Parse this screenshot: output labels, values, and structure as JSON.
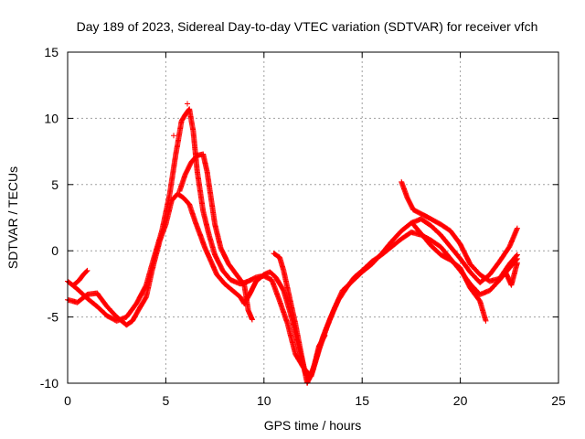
{
  "chart_data": {
    "type": "scatter",
    "title": "Day 189 of 2023, Sidereal Day-to-day VTEC variation (SDTVAR) for receiver vfch",
    "xlabel": "GPS time / hours",
    "ylabel": "SDTVAR / TECUs",
    "xlim": [
      0,
      25
    ],
    "ylim": [
      -10,
      15
    ],
    "xticks": [
      "0",
      "5",
      "10",
      "15",
      "20",
      "25"
    ],
    "yticks": [
      "-10",
      "-5",
      "0",
      "5",
      "10",
      "15"
    ],
    "grid": true,
    "marker": "+",
    "color": "#ff0000",
    "series": [
      {
        "name": "track-a",
        "points": [
          [
            0.0,
            -3.7
          ],
          [
            0.5,
            -3.9
          ],
          [
            1.0,
            -3.3
          ],
          [
            1.5,
            -3.2
          ],
          [
            2.0,
            -4.2
          ],
          [
            2.5,
            -5.0
          ],
          [
            3.0,
            -5.6
          ],
          [
            3.3,
            -5.3
          ],
          [
            3.6,
            -4.5
          ],
          [
            4.0,
            -3.5
          ],
          [
            4.3,
            -1.5
          ],
          [
            4.7,
            0.8
          ],
          [
            5.0,
            2.0
          ],
          [
            5.3,
            3.8
          ],
          [
            5.6,
            4.3
          ],
          [
            5.9,
            4.0
          ],
          [
            6.2,
            3.5
          ],
          [
            6.5,
            2.2
          ],
          [
            6.8,
            1.0
          ],
          [
            7.0,
            0.2
          ],
          [
            7.3,
            -0.8
          ],
          [
            7.6,
            -1.8
          ],
          [
            8.0,
            -2.5
          ],
          [
            8.4,
            -3.0
          ],
          [
            8.8,
            -3.5
          ],
          [
            9.0,
            -4.0
          ],
          [
            9.3,
            -3.2
          ],
          [
            9.6,
            -2.3
          ],
          [
            10.0,
            -1.8
          ],
          [
            10.3,
            -1.6
          ],
          [
            10.6,
            -2.0
          ],
          [
            11.0,
            -3.0
          ],
          [
            11.4,
            -5.0
          ],
          [
            11.8,
            -7.5
          ],
          [
            12.1,
            -9.2
          ],
          [
            12.3,
            -9.7
          ],
          [
            12.6,
            -8.5
          ],
          [
            13.0,
            -6.5
          ],
          [
            13.4,
            -5.0
          ],
          [
            13.8,
            -3.7
          ],
          [
            14.2,
            -2.8
          ],
          [
            14.6,
            -2.0
          ],
          [
            15.0,
            -1.5
          ],
          [
            15.5,
            -0.8
          ],
          [
            16.0,
            -0.3
          ],
          [
            16.5,
            0.3
          ],
          [
            17.0,
            0.9
          ],
          [
            17.5,
            1.4
          ],
          [
            18.0,
            1.2
          ],
          [
            18.5,
            0.8
          ],
          [
            19.0,
            0.3
          ],
          [
            19.5,
            -0.6
          ],
          [
            20.0,
            -1.5
          ],
          [
            20.5,
            -2.5
          ],
          [
            21.0,
            -3.3
          ],
          [
            21.5,
            -3.0
          ],
          [
            22.0,
            -2.2
          ],
          [
            22.5,
            -1.3
          ],
          [
            22.9,
            -0.6
          ]
        ]
      },
      {
        "name": "track-b",
        "points": [
          [
            0.0,
            -2.3
          ],
          [
            0.5,
            -2.9
          ],
          [
            1.0,
            -3.6
          ],
          [
            1.5,
            -4.2
          ],
          [
            2.0,
            -4.9
          ],
          [
            2.5,
            -5.3
          ],
          [
            3.0,
            -5.0
          ],
          [
            3.5,
            -4.0
          ],
          [
            4.0,
            -2.6
          ],
          [
            4.4,
            -0.5
          ],
          [
            4.8,
            1.5
          ],
          [
            5.2,
            4.3
          ],
          [
            5.5,
            7.2
          ],
          [
            5.8,
            9.8
          ],
          [
            6.0,
            10.3
          ],
          [
            6.2,
            10.7
          ],
          [
            6.4,
            9.0
          ],
          [
            6.6,
            6.0
          ],
          [
            6.9,
            3.0
          ],
          [
            7.2,
            1.2
          ],
          [
            7.5,
            -0.3
          ],
          [
            7.9,
            -1.5
          ],
          [
            8.3,
            -2.2
          ],
          [
            8.8,
            -2.5
          ],
          [
            9.2,
            -2.3
          ],
          [
            9.6,
            -2.0
          ],
          [
            10.0,
            -1.9
          ],
          [
            10.4,
            -2.2
          ],
          [
            10.8,
            -3.8
          ],
          [
            11.2,
            -5.5
          ],
          [
            11.6,
            -7.8
          ],
          [
            12.0,
            -8.8
          ],
          [
            12.4,
            -9.5
          ],
          [
            12.8,
            -7.5
          ],
          [
            13.2,
            -5.8
          ],
          [
            13.6,
            -4.3
          ],
          [
            14.0,
            -3.0
          ],
          [
            14.5,
            -2.3
          ],
          [
            15.0,
            -1.6
          ],
          [
            15.5,
            -1.0
          ],
          [
            16.0,
            -0.2
          ],
          [
            16.5,
            0.7
          ],
          [
            17.0,
            1.5
          ],
          [
            17.5,
            2.1
          ],
          [
            18.0,
            2.4
          ],
          [
            18.5,
            1.9
          ],
          [
            19.0,
            1.2
          ],
          [
            19.5,
            0.3
          ],
          [
            20.0,
            -0.6
          ],
          [
            20.5,
            -1.6
          ],
          [
            21.0,
            -2.4
          ],
          [
            21.5,
            -1.8
          ],
          [
            22.0,
            -0.8
          ],
          [
            22.5,
            0.3
          ],
          [
            22.9,
            1.7
          ]
        ]
      },
      {
        "name": "track-c",
        "points": [
          [
            5.7,
            4.5
          ],
          [
            6.0,
            5.8
          ],
          [
            6.3,
            6.7
          ],
          [
            6.6,
            7.2
          ],
          [
            6.9,
            7.3
          ],
          [
            7.1,
            6.0
          ],
          [
            7.3,
            4.0
          ],
          [
            7.5,
            2.0
          ],
          [
            7.8,
            0.2
          ],
          [
            8.2,
            -1.0
          ],
          [
            8.6,
            -1.8
          ],
          [
            9.0,
            -2.6
          ],
          [
            9.2,
            -4.5
          ],
          [
            9.4,
            -5.2
          ]
        ]
      },
      {
        "name": "track-d",
        "points": [
          [
            10.5,
            -0.2
          ],
          [
            10.8,
            -0.5
          ],
          [
            11.0,
            -1.5
          ],
          [
            11.3,
            -3.5
          ],
          [
            11.6,
            -5.5
          ],
          [
            11.9,
            -7.8
          ],
          [
            12.2,
            -10.0
          ],
          [
            12.5,
            -9.0
          ],
          [
            12.8,
            -7.2
          ],
          [
            13.1,
            -6.4
          ]
        ]
      },
      {
        "name": "track-e",
        "points": [
          [
            17.6,
            2.0
          ],
          [
            18.0,
            1.3
          ],
          [
            18.5,
            0.4
          ],
          [
            19.0,
            -0.3
          ],
          [
            19.5,
            -0.7
          ],
          [
            20.0,
            -1.3
          ],
          [
            20.5,
            -2.8
          ],
          [
            21.0,
            -3.8
          ],
          [
            21.3,
            -5.3
          ]
        ]
      },
      {
        "name": "track-f",
        "points": [
          [
            17.0,
            5.2
          ],
          [
            17.3,
            4.0
          ],
          [
            17.6,
            3.1
          ],
          [
            18.0,
            2.8
          ],
          [
            18.5,
            2.4
          ],
          [
            19.0,
            2.0
          ],
          [
            19.5,
            1.5
          ],
          [
            20.0,
            0.5
          ],
          [
            20.5,
            -1.0
          ],
          [
            21.0,
            -1.8
          ],
          [
            21.5,
            -2.3
          ],
          [
            22.0,
            -2.1
          ],
          [
            22.5,
            -1.0
          ],
          [
            22.9,
            -0.3
          ]
        ]
      },
      {
        "name": "track-g",
        "points": [
          [
            0.3,
            -2.6
          ],
          [
            0.6,
            -2.2
          ],
          [
            0.8,
            -1.8
          ],
          [
            1.0,
            -1.5
          ]
        ]
      },
      {
        "name": "track-h",
        "points": [
          [
            22.3,
            -1.6
          ],
          [
            22.6,
            -2.6
          ],
          [
            22.9,
            -0.9
          ]
        ]
      },
      {
        "name": "stray",
        "points": [
          [
            5.4,
            8.7
          ],
          [
            6.1,
            11.1
          ]
        ]
      }
    ]
  }
}
